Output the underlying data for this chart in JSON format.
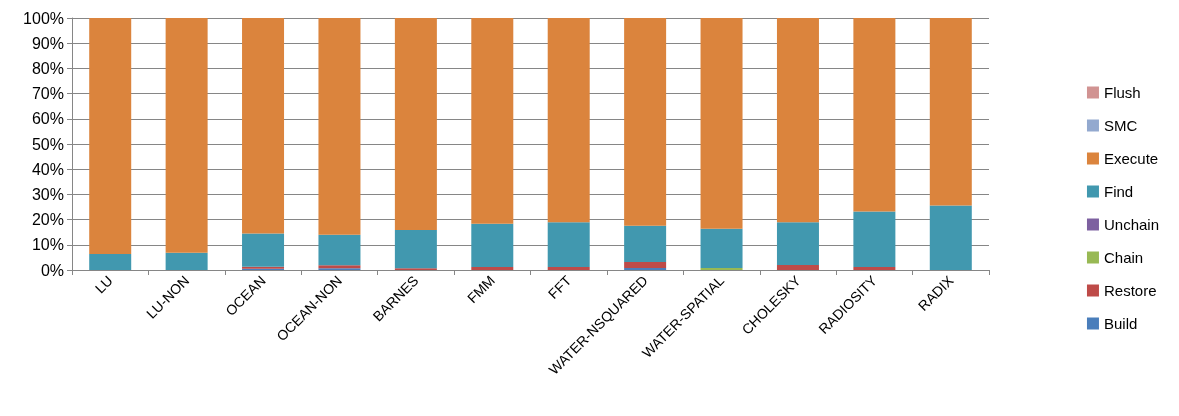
{
  "chart_data": {
    "type": "bar",
    "stacked": true,
    "categories": [
      "LU",
      "LU-NON",
      "OCEAN",
      "OCEAN-NON",
      "BARNES",
      "FMM",
      "FFT",
      "WATER-NSQUARED",
      "WATER-SPATIAL",
      "CHOLESKY",
      "RADIOSITY",
      "RADIX"
    ],
    "series": [
      {
        "name": "Build",
        "color": "#4a7ebb",
        "values": [
          0,
          0,
          0.5,
          0.7,
          0,
          0,
          0,
          0.8,
          0,
          0,
          0,
          0
        ]
      },
      {
        "name": "Restore",
        "color": "#be4b48",
        "values": [
          0,
          0,
          0.8,
          1.2,
          0.7,
          1.2,
          1.2,
          2.4,
          0,
          2.0,
          1.2,
          0
        ]
      },
      {
        "name": "Chain",
        "color": "#98b954",
        "values": [
          0,
          0,
          0,
          0,
          0,
          0,
          0,
          0,
          0.8,
          0,
          0,
          0
        ]
      },
      {
        "name": "Unchain",
        "color": "#7d60a0",
        "values": [
          0,
          0,
          0,
          0,
          0,
          0,
          0,
          0,
          0,
          0,
          0,
          0
        ]
      },
      {
        "name": "Find",
        "color": "#4198af",
        "values": [
          6.3,
          6.8,
          13.2,
          12.1,
          15.2,
          17.2,
          17.7,
          14.4,
          15.6,
          16.9,
          22.0,
          25.6
        ]
      },
      {
        "name": "Execute",
        "color": "#db843d",
        "values": [
          93.7,
          93.2,
          85.5,
          86.0,
          84.1,
          81.6,
          81.1,
          82.4,
          83.6,
          81.1,
          76.8,
          74.4
        ]
      },
      {
        "name": "SMC",
        "color": "#93a9cf",
        "values": [
          0,
          0,
          0,
          0,
          0,
          0,
          0,
          0,
          0,
          0,
          0,
          0
        ]
      },
      {
        "name": "Flush",
        "color": "#d19392",
        "values": [
          0,
          0,
          0,
          0,
          0,
          0,
          0,
          0,
          0,
          0,
          0,
          0
        ]
      }
    ],
    "ylim": [
      0,
      100
    ],
    "yticks": [
      {
        "value": 0,
        "label": "0%"
      },
      {
        "value": 10,
        "label": "10%"
      },
      {
        "value": 20,
        "label": "20%"
      },
      {
        "value": 30,
        "label": "30%"
      },
      {
        "value": 40,
        "label": "40%"
      },
      {
        "value": 50,
        "label": "50%"
      },
      {
        "value": 60,
        "label": "60%"
      },
      {
        "value": 70,
        "label": "70%"
      },
      {
        "value": 80,
        "label": "80%"
      },
      {
        "value": 90,
        "label": "90%"
      },
      {
        "value": 100,
        "label": "100%"
      }
    ],
    "grid": "y",
    "legend": "right"
  }
}
